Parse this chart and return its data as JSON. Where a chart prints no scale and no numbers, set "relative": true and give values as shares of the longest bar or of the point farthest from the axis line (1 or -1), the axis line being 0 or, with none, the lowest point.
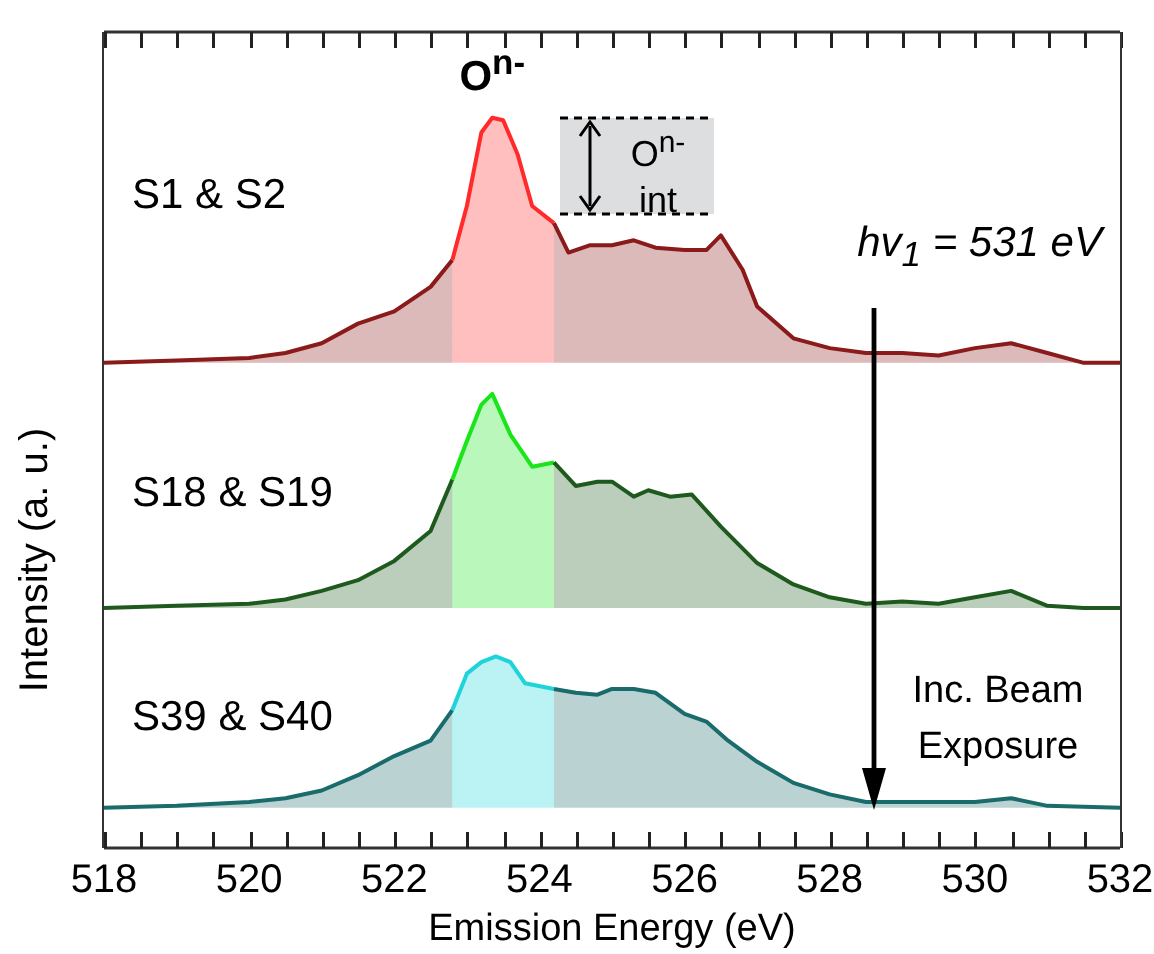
{
  "chart_data": [
    {
      "type": "area",
      "relative": true,
      "xlim": [
        518,
        532
      ],
      "tick_labels": false,
      "legend": false,
      "series": [
        {
          "name": "S1 & S2",
          "color": "#8b1a1a",
          "x": [
            518,
            519,
            520,
            520.5,
            521,
            521.5,
            522,
            522.5,
            522.8
          ],
          "values": [
            0,
            0.01,
            0.02,
            0.04,
            0.08,
            0.16,
            0.21,
            0.31,
            0.42
          ]
        },
        {
          "color": "#ff2a2a",
          "x": [
            522.8,
            523,
            523.2,
            523.35,
            523.5,
            523.7,
            523.9,
            524.2
          ],
          "values": [
            0.42,
            0.64,
            0.94,
            1,
            0.99,
            0.85,
            0.64,
            0.57
          ]
        },
        {
          "color": "#8b1a1a",
          "x": [
            524.2,
            524.4,
            524.7,
            525,
            525.3,
            525.6,
            526,
            526.3,
            526.5,
            526.8,
            527,
            527.5,
            528,
            528.5,
            529,
            529.5,
            530,
            530.5,
            531,
            531.5,
            532
          ],
          "values": [
            0.57,
            0.45,
            0.48,
            0.48,
            0.5,
            0.47,
            0.46,
            0.46,
            0.52,
            0.38,
            0.23,
            0.1,
            0.06,
            0.04,
            0.04,
            0.03,
            0.06,
            0.08,
            0.04,
            0,
            0
          ]
        }
      ],
      "annotations": [
        {
          "text": "O$^{n-}$",
          "x": 523.35,
          "y": 1
        },
        "O$^{n-}$ int",
        "hv$_{1}$ = 531 eV"
      ]
    },
    {
      "type": "area",
      "relative": true,
      "xlim": [
        518,
        532
      ],
      "tick_labels": false,
      "legend": false,
      "ylabel": "Intensity (a. u.)",
      "series": [
        {
          "name": "S18 & S19",
          "color": "#1e5a1e",
          "x": [
            518,
            519,
            520,
            520.5,
            521,
            521.5,
            522,
            522.5,
            522.8
          ],
          "values": [
            0,
            0.01,
            0.02,
            0.04,
            0.08,
            0.13,
            0.22,
            0.36,
            0.6
          ]
        },
        {
          "color": "#19e619",
          "x": [
            522.8,
            523,
            523.2,
            523.35,
            523.6,
            523.9,
            524.2
          ],
          "values": [
            0.6,
            0.78,
            0.95,
            1,
            0.81,
            0.66,
            0.68
          ]
        },
        {
          "color": "#1e5a1e",
          "x": [
            524.2,
            524.5,
            524.8,
            525,
            525.3,
            525.5,
            525.8,
            526.1,
            526.5,
            527,
            527.5,
            528,
            528.5,
            529,
            529.5,
            530,
            530.5,
            531,
            531.5,
            532
          ],
          "values": [
            0.68,
            0.57,
            0.59,
            0.59,
            0.52,
            0.55,
            0.52,
            0.53,
            0.38,
            0.21,
            0.11,
            0.05,
            0.02,
            0.03,
            0.02,
            0.05,
            0.08,
            0.01,
            0,
            0
          ]
        }
      ]
    },
    {
      "type": "area",
      "relative": true,
      "xlim": [
        518,
        532
      ],
      "xticks": [
        518,
        {
          "value": 518.5,
          "label": null
        },
        {
          "value": 519,
          "label": null
        },
        {
          "value": 519.5,
          "label": null
        },
        520,
        {
          "value": 520.5,
          "label": null
        },
        {
          "value": 521,
          "label": null
        },
        {
          "value": 521.5,
          "label": null
        },
        522,
        {
          "value": 522.5,
          "label": null
        },
        {
          "value": 523,
          "label": null
        },
        {
          "value": 523.5,
          "label": null
        },
        524,
        {
          "value": 524.5,
          "label": null
        },
        {
          "value": 525,
          "label": null
        },
        {
          "value": 525.5,
          "label": null
        },
        526,
        {
          "value": 526.5,
          "label": null
        },
        {
          "value": 527,
          "label": null
        },
        {
          "value": 527.5,
          "label": null
        },
        528,
        {
          "value": 528.5,
          "label": null
        },
        {
          "value": 529,
          "label": null
        },
        {
          "value": 529.5,
          "label": null
        },
        530,
        {
          "value": 530.5,
          "label": null
        },
        {
          "value": 531,
          "label": null
        },
        {
          "value": 531.5,
          "label": null
        },
        532
      ],
      "tick_labels": "x",
      "legend": false,
      "xlabel": "Emission Energy (eV)",
      "series": [
        {
          "name": "S39 & S40",
          "color": "#1a6b6b",
          "x": [
            518,
            519,
            520,
            520.5,
            521,
            521.5,
            522,
            522.5,
            522.8
          ],
          "values": [
            0.21,
            0.22,
            0.24,
            0.26,
            0.3,
            0.38,
            0.48,
            0.56,
            0.72
          ]
        },
        {
          "color": "#1fd3db",
          "x": [
            522.8,
            523,
            523.2,
            523.4,
            523.6,
            523.8,
            524.2
          ],
          "values": [
            0.72,
            0.91,
            0.97,
            1,
            0.97,
            0.86,
            0.83
          ]
        },
        {
          "color": "#1a6b6b",
          "x": [
            524.2,
            524.5,
            524.8,
            525,
            525.3,
            525.6,
            526,
            526.3,
            526.6,
            527,
            527.5,
            528,
            528.5,
            529,
            529.5,
            530,
            530.5,
            531,
            532
          ],
          "values": [
            0.83,
            0.81,
            0.8,
            0.83,
            0.83,
            0.81,
            0.7,
            0.66,
            0.56,
            0.45,
            0.34,
            0.28,
            0.24,
            0.24,
            0.24,
            0.24,
            0.26,
            0.22,
            0.21
          ]
        }
      ],
      "annotations": [
        "Inc. Beam Exposure"
      ]
    }
  ]
}
